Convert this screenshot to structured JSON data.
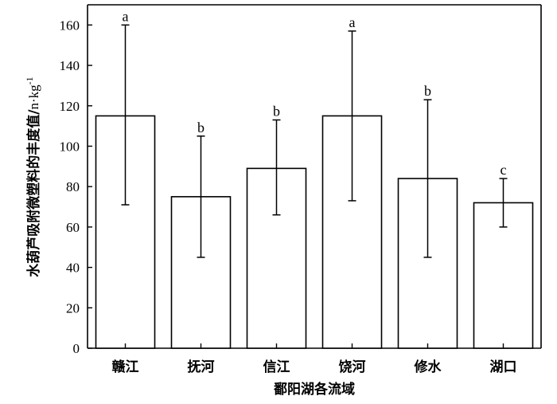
{
  "chart_data": {
    "type": "bar",
    "title": "",
    "xlabel": "鄱阳湖各流域",
    "ylabel_main": "水葫芦吸附微塑料的丰度值/",
    "ylabel_unit": "n·kg",
    "ylabel_sup": "-1",
    "ylim": [
      0,
      170
    ],
    "yticks": [
      0,
      20,
      40,
      60,
      80,
      100,
      120,
      140,
      160
    ],
    "categories": [
      "赣江",
      "抚河",
      "信江",
      "饶河",
      "修水",
      "湖口"
    ],
    "values": [
      115,
      75,
      89,
      115,
      84,
      72
    ],
    "error_low": [
      71,
      45,
      66,
      73,
      45,
      60
    ],
    "error_high": [
      160,
      105,
      113,
      157,
      123,
      84
    ],
    "significance": [
      "a",
      "b",
      "b",
      "a",
      "b",
      "c"
    ],
    "grid": false,
    "bar_color": "#ffffff"
  }
}
